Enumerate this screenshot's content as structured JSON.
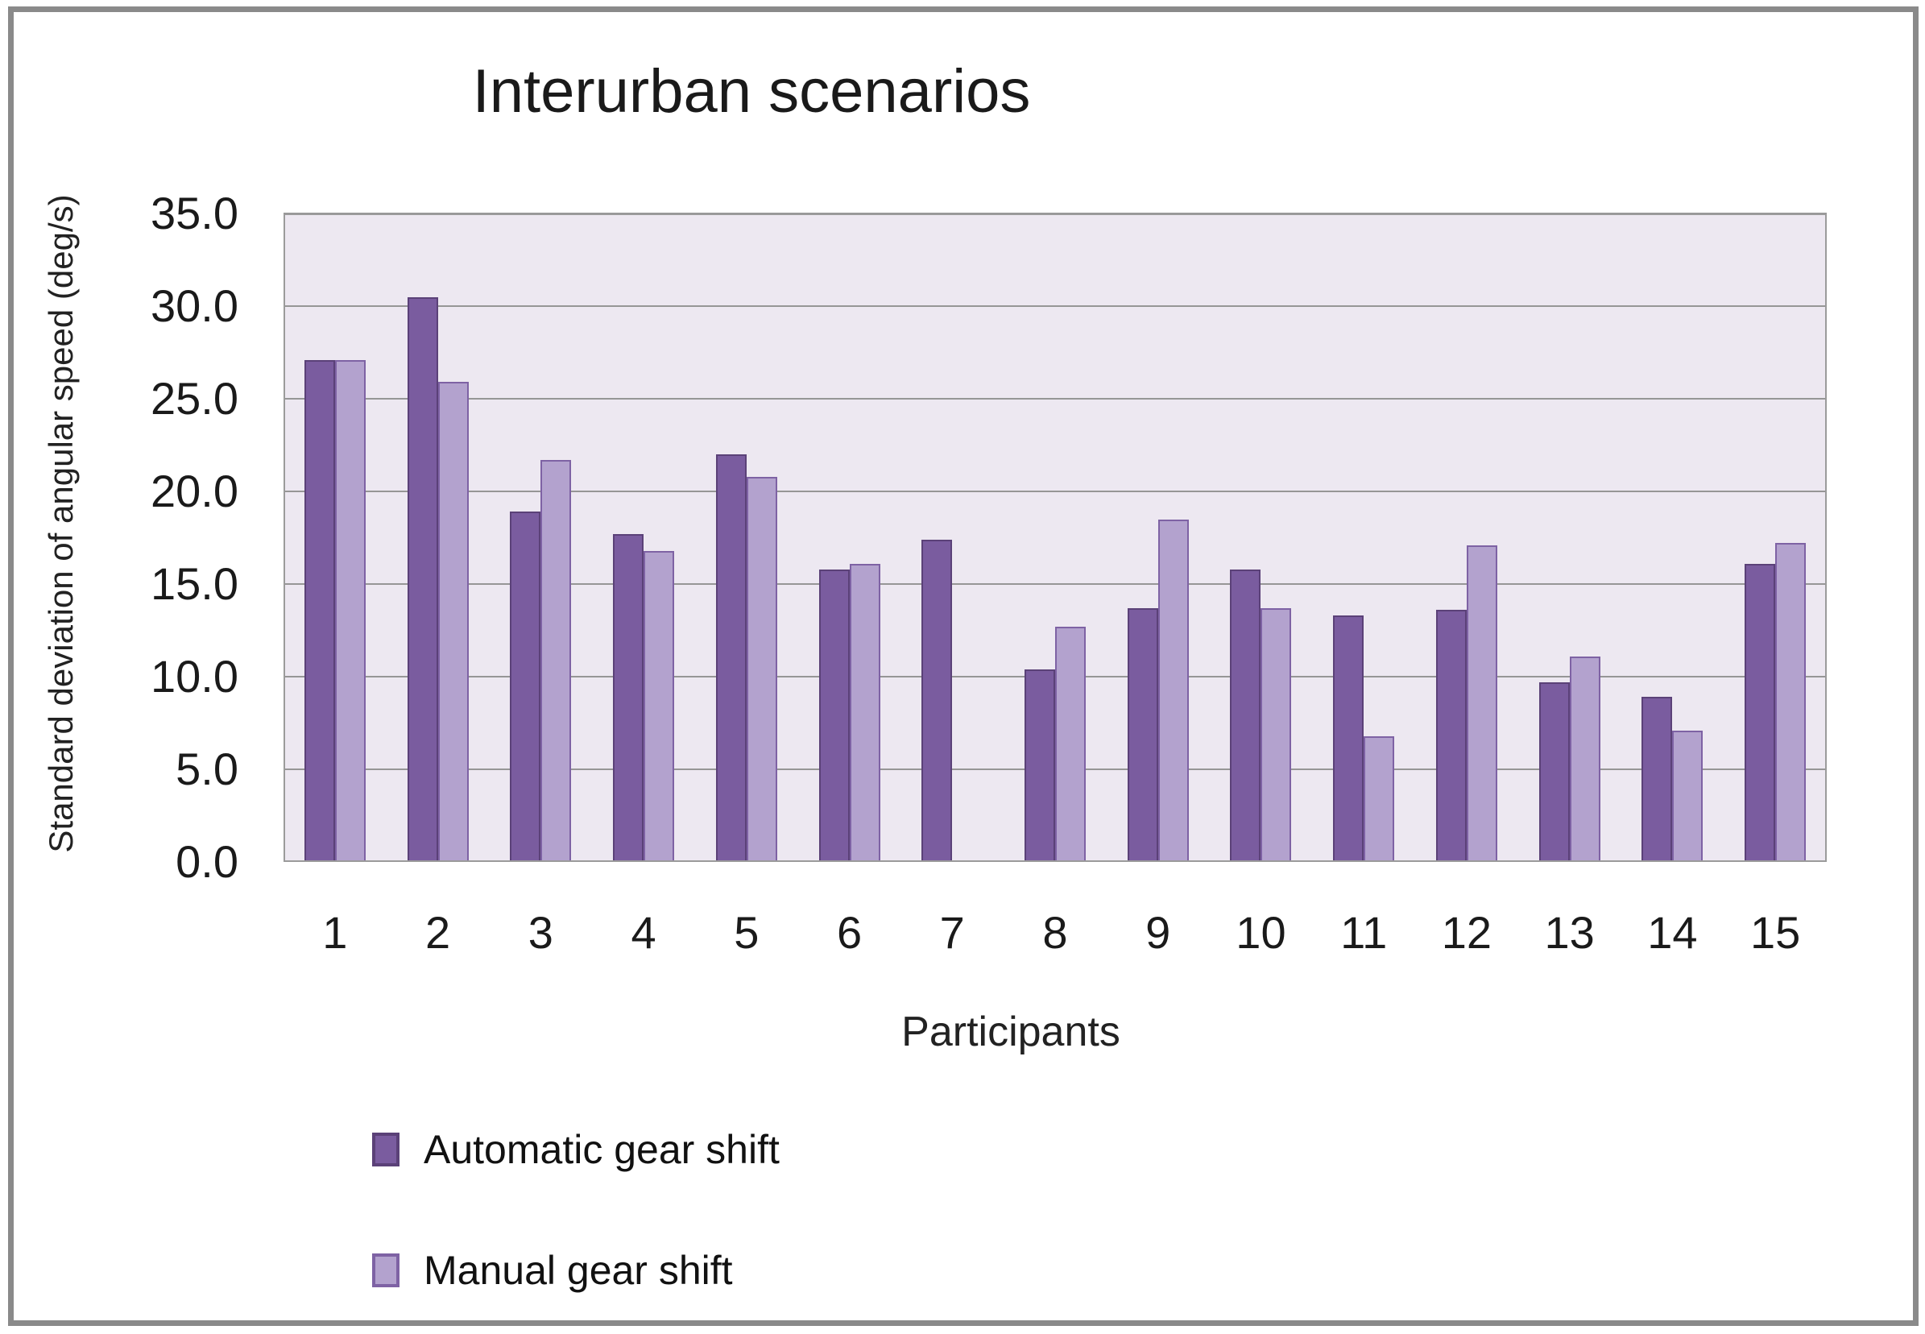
{
  "chart_data": {
    "type": "bar",
    "title": "Interurban scenarios",
    "xlabel": "Participants",
    "ylabel": "Standard deviation of angular speed (deg/s)",
    "categories": [
      "1",
      "2",
      "3",
      "4",
      "5",
      "6",
      "7",
      "8",
      "9",
      "10",
      "11",
      "12",
      "13",
      "14",
      "15"
    ],
    "series": [
      {
        "name": "Automatic gear shift",
        "color": "#7A5C9F",
        "border_color": "#5B4178",
        "values": [
          27.1,
          30.5,
          18.9,
          17.7,
          22.0,
          15.8,
          17.4,
          10.4,
          13.7,
          15.8,
          13.3,
          13.6,
          9.7,
          8.9,
          16.1
        ]
      },
      {
        "name": "Manual gear shift",
        "color": "#B3A2CE",
        "border_color": "#7E62A4",
        "values": [
          27.1,
          25.9,
          21.7,
          16.8,
          20.8,
          16.1,
          null,
          12.7,
          18.5,
          13.7,
          6.8,
          17.1,
          11.1,
          7.1,
          17.2
        ]
      }
    ],
    "ylim": [
      0,
      35
    ],
    "yticks": [
      0,
      5,
      10,
      15,
      20,
      25,
      30,
      35
    ],
    "ytick_labels": [
      "0.0",
      "5.0",
      "10.0",
      "15.0",
      "20.0",
      "25.0",
      "30.0",
      "35.0"
    ],
    "grid": "horizontal",
    "legend_position": "bottom-left",
    "plot_bg_color": "#EDE8F1",
    "gridline_color": "#969696",
    "frame_border_color": "#8A8A8A"
  }
}
